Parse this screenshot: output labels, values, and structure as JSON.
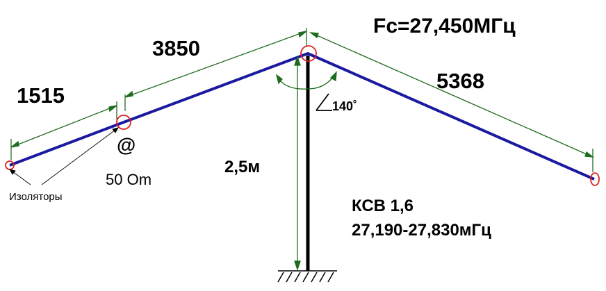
{
  "diagram": {
    "labels": {
      "center_frequency": "Fc=27,450МГц",
      "dim_left": "1515",
      "dim_middle": "3850",
      "dim_right": "5368",
      "height": "2,5м",
      "angle": "140˚",
      "impedance": "50 Om",
      "feed_symbol": "@",
      "insulators": "Изоляторы",
      "vswr": "КСВ 1,6",
      "frequency_range": "27,190-27,830мГц"
    },
    "colors": {
      "wire": "#1a1aa0",
      "dimension_lines": "#1f6b1f",
      "insulators": "#e02020",
      "mast": "#000000",
      "text": "#000000"
    },
    "icons": [
      "insulator-icon",
      "ground-hatch-icon",
      "angle-icon"
    ]
  }
}
